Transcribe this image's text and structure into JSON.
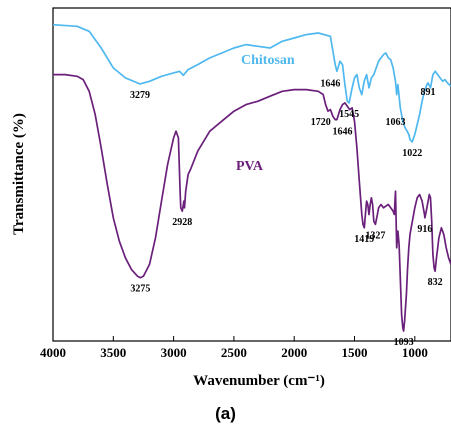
{
  "chart_data": {
    "type": "line",
    "title": "",
    "xlabel": "Wavenumber (cm⁻¹)",
    "ylabel": "Transmittance (%)",
    "xlim": [
      4000,
      700
    ],
    "x_reversed": true,
    "x_ticks": [
      4000,
      3500,
      3000,
      2500,
      2000,
      1500,
      1000
    ],
    "ylim": [
      0,
      100
    ],
    "y_ticks_shown": false,
    "grid": false,
    "legend": "none",
    "panel_label": "(a)",
    "series": [
      {
        "name": "Chitosan",
        "color": "#4FB8EE",
        "points": [
          [
            4000,
            95
          ],
          [
            3800,
            94.5
          ],
          [
            3700,
            93
          ],
          [
            3600,
            88
          ],
          [
            3500,
            82
          ],
          [
            3400,
            79
          ],
          [
            3300,
            77.5
          ],
          [
            3279,
            77.2
          ],
          [
            3200,
            78
          ],
          [
            3100,
            79.5
          ],
          [
            3000,
            80.5
          ],
          [
            2950,
            81
          ],
          [
            2920,
            79.8
          ],
          [
            2880,
            81.5
          ],
          [
            2800,
            83
          ],
          [
            2700,
            85
          ],
          [
            2600,
            86.5
          ],
          [
            2500,
            88
          ],
          [
            2400,
            89
          ],
          [
            2300,
            88.5
          ],
          [
            2200,
            88
          ],
          [
            2100,
            90
          ],
          [
            2000,
            91
          ],
          [
            1900,
            92
          ],
          [
            1800,
            92.5
          ],
          [
            1700,
            91.5
          ],
          [
            1660,
            83
          ],
          [
            1646,
            81
          ],
          [
            1620,
            84
          ],
          [
            1600,
            83
          ],
          [
            1580,
            77
          ],
          [
            1560,
            72
          ],
          [
            1545,
            71.5
          ],
          [
            1520,
            76
          ],
          [
            1500,
            79
          ],
          [
            1480,
            80
          ],
          [
            1460,
            76
          ],
          [
            1440,
            74
          ],
          [
            1420,
            78
          ],
          [
            1400,
            80
          ],
          [
            1380,
            76
          ],
          [
            1360,
            79
          ],
          [
            1340,
            80
          ],
          [
            1320,
            82
          ],
          [
            1300,
            84
          ],
          [
            1280,
            85
          ],
          [
            1260,
            86
          ],
          [
            1240,
            86.5
          ],
          [
            1220,
            85
          ],
          [
            1200,
            84.5
          ],
          [
            1180,
            82
          ],
          [
            1160,
            78
          ],
          [
            1150,
            74
          ],
          [
            1140,
            77
          ],
          [
            1120,
            70
          ],
          [
            1100,
            66
          ],
          [
            1080,
            64
          ],
          [
            1063,
            63
          ],
          [
            1050,
            62
          ],
          [
            1040,
            60.5
          ],
          [
            1022,
            59.8
          ],
          [
            1000,
            62
          ],
          [
            980,
            65
          ],
          [
            960,
            68
          ],
          [
            940,
            72
          ],
          [
            920,
            75
          ],
          [
            900,
            77
          ],
          [
            891,
            77.5
          ],
          [
            870,
            76
          ],
          [
            850,
            80
          ],
          [
            830,
            81
          ],
          [
            810,
            80
          ],
          [
            790,
            79
          ],
          [
            770,
            78
          ],
          [
            750,
            78.5
          ],
          [
            730,
            77.5
          ],
          [
            700,
            76.5
          ]
        ],
        "peaks": [
          {
            "label": "3279",
            "x": 3279
          },
          {
            "label": "1646",
            "x": 1646
          },
          {
            "label": "1545",
            "x": 1545
          },
          {
            "label": "891",
            "x": 891
          },
          {
            "label": "1022",
            "x": 1022
          }
        ]
      },
      {
        "name": "PVA",
        "color": "#6A1F7A",
        "points": [
          [
            4000,
            80
          ],
          [
            3900,
            80
          ],
          [
            3800,
            79.5
          ],
          [
            3750,
            78.5
          ],
          [
            3700,
            75
          ],
          [
            3650,
            68
          ],
          [
            3600,
            58
          ],
          [
            3550,
            47
          ],
          [
            3500,
            37
          ],
          [
            3450,
            30
          ],
          [
            3400,
            25
          ],
          [
            3350,
            21.5
          ],
          [
            3300,
            19.5
          ],
          [
            3275,
            19
          ],
          [
            3250,
            19.5
          ],
          [
            3200,
            23
          ],
          [
            3150,
            31
          ],
          [
            3100,
            42
          ],
          [
            3050,
            53
          ],
          [
            3000,
            61
          ],
          [
            2980,
            63
          ],
          [
            2960,
            61
          ],
          [
            2945,
            44
          ],
          [
            2940,
            40
          ],
          [
            2928,
            39
          ],
          [
            2915,
            42
          ],
          [
            2910,
            40
          ],
          [
            2900,
            45
          ],
          [
            2880,
            50
          ],
          [
            2860,
            51.5
          ],
          [
            2800,
            57
          ],
          [
            2700,
            63
          ],
          [
            2600,
            66
          ],
          [
            2500,
            69
          ],
          [
            2400,
            71
          ],
          [
            2300,
            72
          ],
          [
            2200,
            73.5
          ],
          [
            2100,
            75
          ],
          [
            2000,
            75.5
          ],
          [
            1900,
            75.5
          ],
          [
            1800,
            75
          ],
          [
            1760,
            74
          ],
          [
            1740,
            71
          ],
          [
            1720,
            69
          ],
          [
            1700,
            69.5
          ],
          [
            1680,
            67.5
          ],
          [
            1660,
            66.5
          ],
          [
            1646,
            66.5
          ],
          [
            1620,
            69.5
          ],
          [
            1600,
            71
          ],
          [
            1580,
            71.5
          ],
          [
            1560,
            70.5
          ],
          [
            1540,
            69.5
          ],
          [
            1520,
            70
          ],
          [
            1500,
            66
          ],
          [
            1480,
            58
          ],
          [
            1460,
            48
          ],
          [
            1440,
            38
          ],
          [
            1430,
            35
          ],
          [
            1419,
            34
          ],
          [
            1410,
            38
          ],
          [
            1400,
            42
          ],
          [
            1390,
            41
          ],
          [
            1380,
            38
          ],
          [
            1370,
            41
          ],
          [
            1360,
            43
          ],
          [
            1350,
            41
          ],
          [
            1340,
            36
          ],
          [
            1327,
            35
          ],
          [
            1310,
            38
          ],
          [
            1300,
            40
          ],
          [
            1280,
            41
          ],
          [
            1260,
            40
          ],
          [
            1240,
            40.5
          ],
          [
            1220,
            41
          ],
          [
            1200,
            40
          ],
          [
            1180,
            39
          ],
          [
            1170,
            38
          ],
          [
            1160,
            45
          ],
          [
            1150,
            28
          ],
          [
            1140,
            33
          ],
          [
            1130,
            29
          ],
          [
            1120,
            19
          ],
          [
            1110,
            8
          ],
          [
            1100,
            4
          ],
          [
            1093,
            3
          ],
          [
            1085,
            6
          ],
          [
            1070,
            14
          ],
          [
            1060,
            22
          ],
          [
            1050,
            28
          ],
          [
            1040,
            32
          ],
          [
            1020,
            36
          ],
          [
            1000,
            40
          ],
          [
            980,
            43
          ],
          [
            960,
            44
          ],
          [
            940,
            42
          ],
          [
            920,
            38
          ],
          [
            916,
            37
          ],
          [
            900,
            40
          ],
          [
            880,
            44
          ],
          [
            870,
            43
          ],
          [
            860,
            36
          ],
          [
            850,
            26
          ],
          [
            840,
            22
          ],
          [
            832,
            21
          ],
          [
            820,
            25
          ],
          [
            800,
            31
          ],
          [
            780,
            34
          ],
          [
            760,
            32
          ],
          [
            740,
            28
          ],
          [
            720,
            25
          ],
          [
            700,
            23
          ]
        ],
        "peaks": [
          {
            "label": "3275",
            "x": 3275
          },
          {
            "label": "2928",
            "x": 2928
          },
          {
            "label": "1720",
            "x": 1720
          },
          {
            "label": "1646",
            "x": 1646
          },
          {
            "label": "1419",
            "x": 1419
          },
          {
            "label": "1327",
            "x": 1327
          },
          {
            "label": "1063",
            "x": 1063
          },
          {
            "label": "1093",
            "x": 1093
          },
          {
            "label": "916",
            "x": 916
          },
          {
            "label": "832",
            "x": 832
          }
        ]
      }
    ]
  }
}
